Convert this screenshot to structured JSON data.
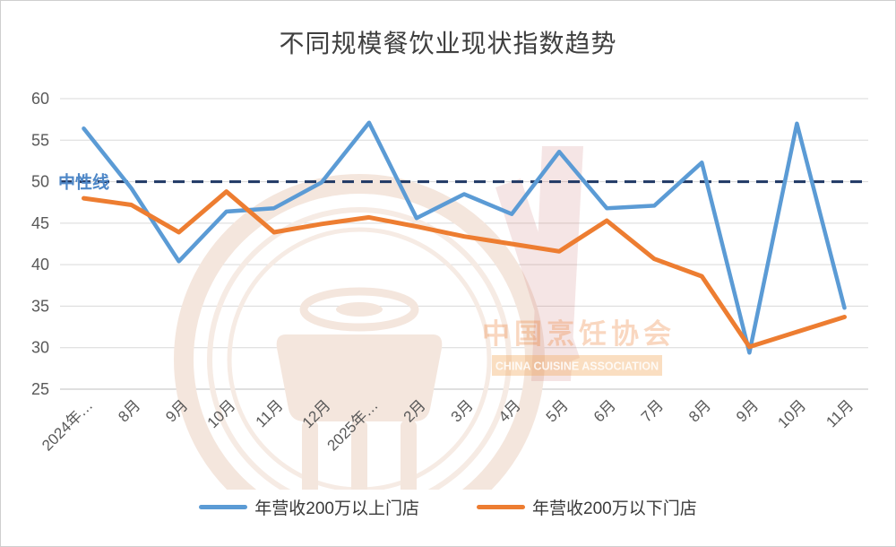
{
  "title": "不同规模餐饮业现状指数趋势",
  "watermark": {
    "cn": "中国烹饪协会",
    "en": "CHINA CUISINE ASSOCIATION"
  },
  "neutral": {
    "label": "中性线",
    "value": 50
  },
  "colors": {
    "series_above": "#5B9BD5",
    "series_below": "#ED7D31",
    "neutral_line": "#1F3864",
    "neutral_label": "#4E87C7",
    "grid": "#D9D9D9",
    "axis_line": "#BFBFBF",
    "axis_text": "#595959",
    "title_text": "#3F3F3F"
  },
  "chart_data": {
    "type": "line",
    "title": "不同规模餐饮业现状指数趋势",
    "xlabel": "",
    "ylabel": "",
    "categories": [
      "2024年…",
      "8月",
      "9月",
      "10月",
      "11月",
      "12月",
      "2025年…",
      "2月",
      "3月",
      "4月",
      "5月",
      "6月",
      "7月",
      "8月",
      "9月",
      "10月",
      "11月"
    ],
    "series": [
      {
        "name": "年营收200万以上门店",
        "color": "#5B9BD5",
        "values": [
          56.4,
          49.2,
          40.4,
          46.4,
          46.8,
          49.9,
          57.1,
          45.6,
          48.5,
          46.1,
          53.6,
          46.8,
          47.1,
          52.3,
          29.4,
          57.0,
          34.8
        ]
      },
      {
        "name": "年营收200万以下门店",
        "color": "#ED7D31",
        "values": [
          48.0,
          47.2,
          43.9,
          48.8,
          43.9,
          44.9,
          45.7,
          44.6,
          43.4,
          42.5,
          41.6,
          45.3,
          40.7,
          38.6,
          30.1,
          31.9,
          33.7
        ]
      }
    ],
    "ylim": [
      25,
      60
    ],
    "yticks": [
      25,
      30,
      35,
      40,
      45,
      50,
      55,
      60
    ],
    "grid": true,
    "legend_position": "bottom",
    "reference_line": {
      "label": "中性线",
      "value": 50,
      "style": "dashed"
    }
  }
}
